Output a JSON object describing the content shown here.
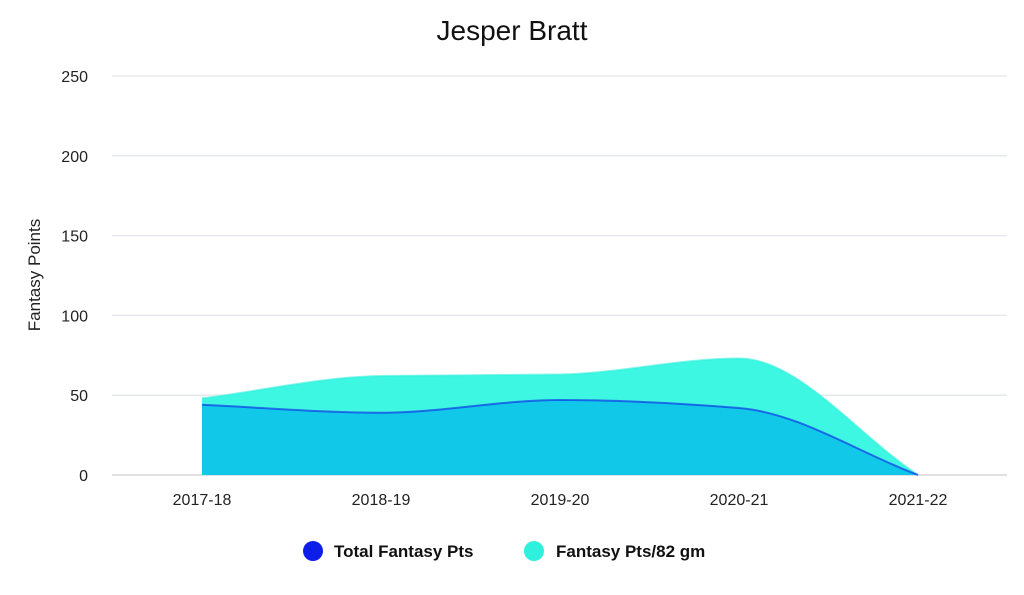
{
  "chart_data": {
    "type": "area",
    "title": "Jesper Bratt",
    "xlabel": "",
    "ylabel": "Fantasy Points",
    "categories": [
      "2017-18",
      "2018-19",
      "2019-20",
      "2020-21",
      "2021-22"
    ],
    "ylim": [
      0,
      250
    ],
    "yticks": [
      "0",
      "50",
      "100",
      "150",
      "200",
      "250"
    ],
    "grid": true,
    "legend_position": "bottom",
    "series": [
      {
        "name": "Total Fantasy Pts",
        "values": [
          44,
          39,
          47,
          42,
          0
        ],
        "color": "#0d1ee8",
        "fill": "#12c8e8"
      },
      {
        "name": "Fantasy Pts/82 gm",
        "values": [
          48,
          62,
          63,
          73,
          0
        ],
        "color": "#2ff0dc",
        "fill": "#3ef7e2"
      }
    ]
  }
}
